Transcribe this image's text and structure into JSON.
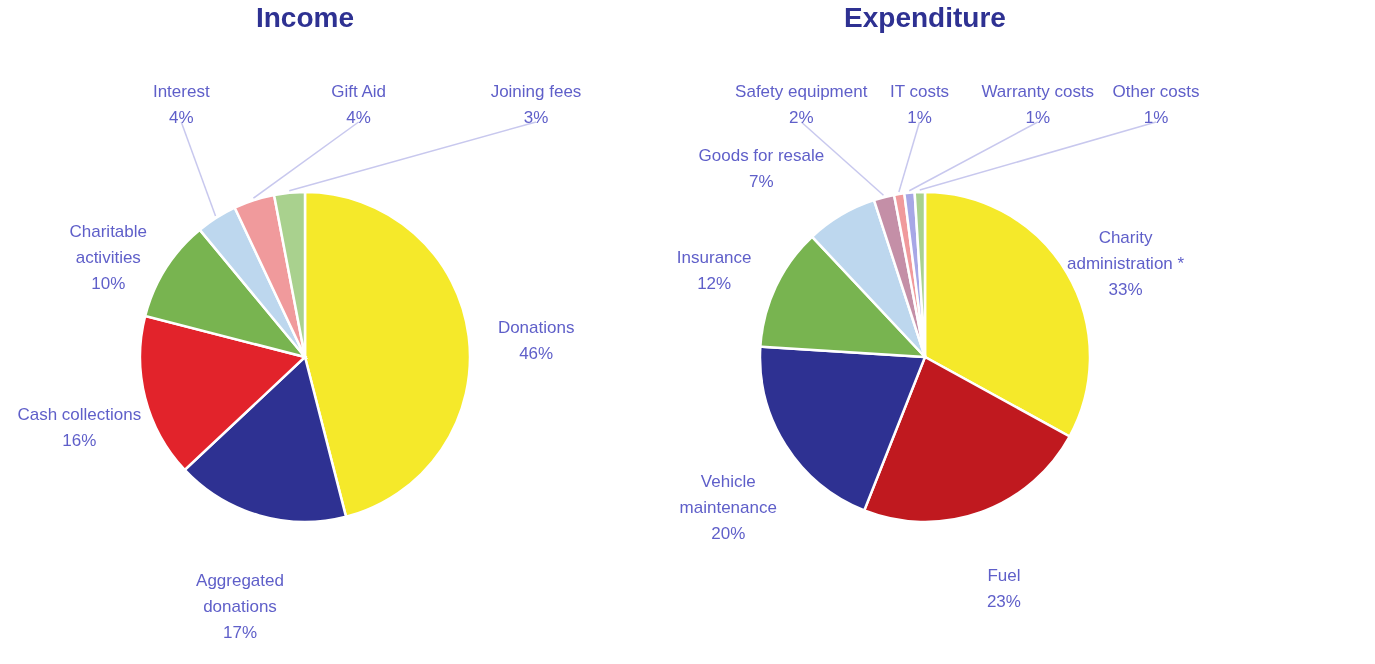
{
  "chart_data": [
    {
      "type": "pie",
      "title": "Income",
      "legend": false,
      "categories": [
        "Donations",
        "Aggregated donations",
        "Cash collections",
        "Charitable activities",
        "Interest",
        "Gift Aid",
        "Joining fees"
      ],
      "values": [
        46,
        17,
        16,
        10,
        4,
        4,
        3
      ],
      "value_labels": [
        "46%",
        "17%",
        "16%",
        "10%",
        "4%",
        "4%",
        "3%"
      ],
      "colors": [
        "#f5e92a",
        "#2e3192",
        "#e2232b",
        "#78b450",
        "#bdd7ee",
        "#f09a9c",
        "#a9d18e"
      ]
    },
    {
      "type": "pie",
      "title": "Expenditure",
      "legend": false,
      "categories": [
        "Charity administration *",
        "Fuel",
        "Vehicle maintenance",
        "Insurance",
        "Goods for resale",
        "Safety equipment",
        "IT costs",
        "Warranty costs",
        "Other costs"
      ],
      "values": [
        33,
        23,
        20,
        12,
        7,
        2,
        1,
        1,
        1
      ],
      "value_labels": [
        "33%",
        "23%",
        "20%",
        "12%",
        "7%",
        "2%",
        "1%",
        "1%",
        "1%"
      ],
      "colors": [
        "#f5e92a",
        "#c0191f",
        "#2e3192",
        "#78b450",
        "#bdd7ee",
        "#c48fa7",
        "#f09a9c",
        "#a7a7e6",
        "#a9d18e"
      ]
    }
  ]
}
